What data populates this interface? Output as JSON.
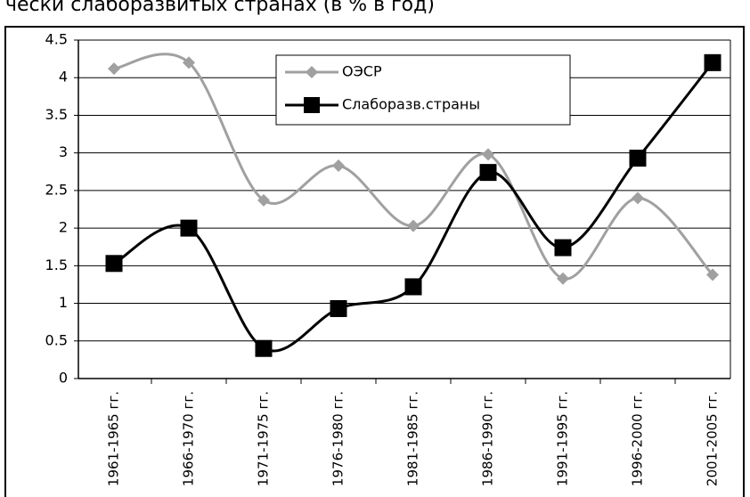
{
  "chart_data": {
    "type": "line",
    "title": "чески слаборазвитых странах (в % в год)",
    "categories": [
      "1961-1965 гг.",
      "1966-1970 гг.",
      "1971-1975 гг.",
      "1976-1980 гг.",
      "1981-1985 гг.",
      "1986-1990 гг.",
      "1991-1995 гг.",
      "1996-2000 гг.",
      "2001-2005 гг."
    ],
    "series": [
      {
        "name": "ОЭСР",
        "color": "#a0a0a0",
        "marker": "diamond",
        "values": [
          4.12,
          4.2,
          2.37,
          2.83,
          2.03,
          2.98,
          1.33,
          2.4,
          1.38
        ]
      },
      {
        "name": "Слаборазв.страны",
        "color": "#000000",
        "marker": "square",
        "values": [
          1.53,
          2.0,
          0.4,
          0.93,
          1.22,
          2.74,
          1.74,
          2.93,
          4.2
        ]
      }
    ],
    "ylim": [
      0,
      4.5
    ],
    "yticks": [
      0,
      {
        "value": 0.5,
        "label": "0.5"
      },
      1,
      {
        "value": 1.5,
        "label": "1.5"
      },
      2,
      {
        "value": 2.5,
        "label": "2.5"
      },
      3,
      {
        "value": 3.5,
        "label": "3.5"
      },
      4,
      {
        "value": 4.5,
        "label": "4.5"
      }
    ],
    "grid": true
  }
}
